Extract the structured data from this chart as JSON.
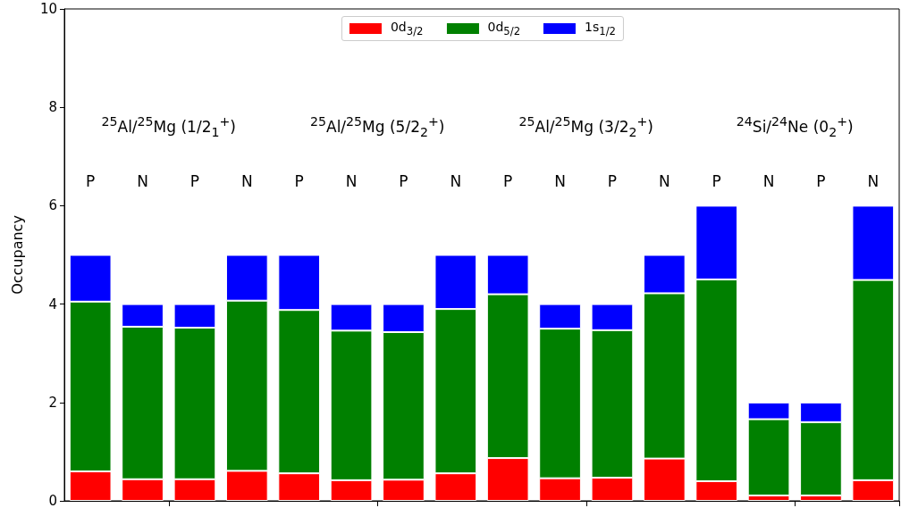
{
  "chart_data": {
    "type": "bar",
    "ylabel": "Occupancy",
    "stacked": true,
    "categories": [
      null,
      null,
      null,
      null,
      null,
      null,
      null,
      null,
      null,
      null,
      null,
      null,
      null,
      null,
      null,
      null
    ],
    "series": [
      {
        "name": "0d$_{3/2}$",
        "color": "#ff0000",
        "values": [
          0.6,
          0.44,
          0.44,
          0.61,
          0.56,
          0.42,
          0.43,
          0.56,
          0.87,
          0.46,
          0.47,
          0.86,
          0.4,
          0.11,
          0.11,
          0.42
        ]
      },
      {
        "name": "0d$_{5/2}$",
        "color": "#008000",
        "values": [
          3.45,
          3.1,
          3.08,
          3.46,
          3.32,
          3.04,
          3.0,
          3.34,
          3.33,
          3.04,
          3.0,
          3.36,
          4.1,
          1.55,
          1.49,
          4.07
        ]
      },
      {
        "name": "1s$_{1/2}$",
        "color": "#0000ff",
        "values": [
          0.95,
          0.46,
          0.48,
          0.93,
          1.12,
          0.54,
          0.57,
          1.1,
          0.8,
          0.5,
          0.53,
          0.78,
          1.5,
          0.34,
          0.4,
          1.51
        ]
      }
    ],
    "ylim": [
      0,
      10
    ],
    "yticks": [
      0,
      2,
      4,
      6,
      8,
      10
    ],
    "grid": false,
    "legend": "top",
    "tick_labels": "y",
    "annotations": [
      "$^{25}$Al/$^{25}$Mg (1/2$_{1}$$^{+}$)",
      "$^{25}$Al/$^{25}$Mg (5/2$_{2}$$^{+}$)",
      "$^{25}$Al/$^{25}$Mg (3/2$_{2}$$^{+}$)",
      "$^{24}$Si/$^{24}$Ne (0$_{2}$$^{+}$)",
      "P",
      "N",
      "P",
      "N",
      "P",
      "N",
      "P",
      "N",
      "P",
      "N",
      "P",
      "N",
      "P",
      "N",
      "P",
      "N"
    ]
  }
}
